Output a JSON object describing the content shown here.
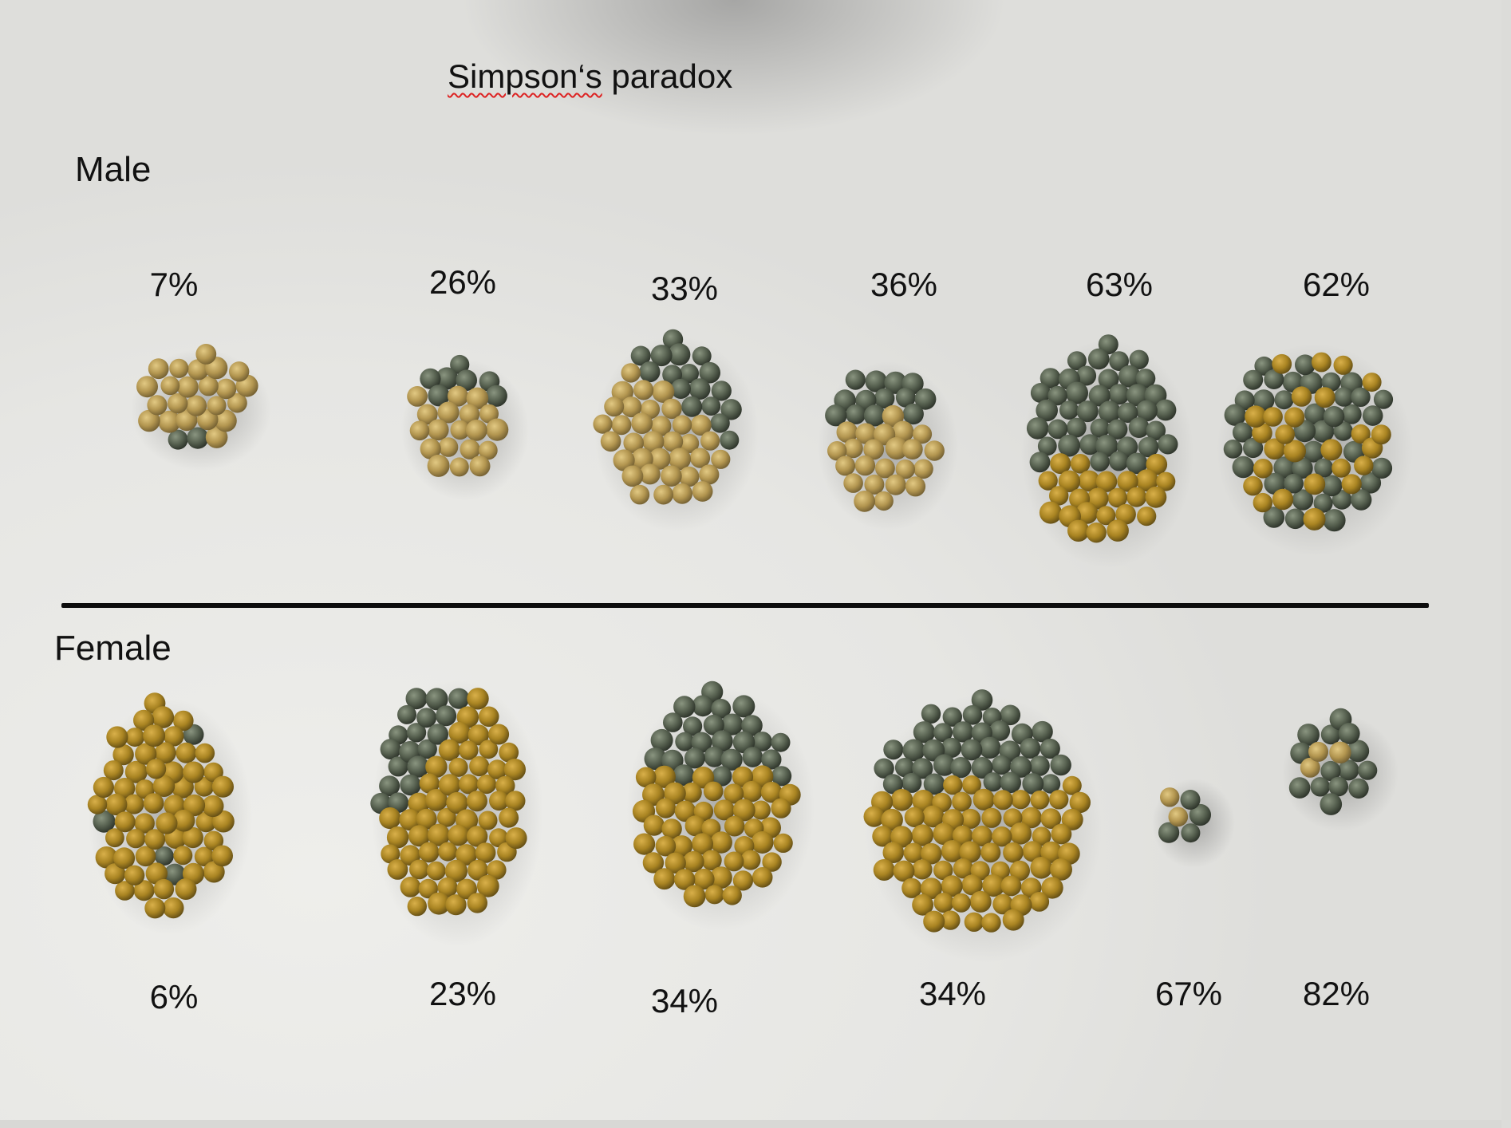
{
  "title_part1": "Simpson‘s",
  "title_part2": " paradox",
  "male": {
    "label": "Male",
    "percentages": [
      "7%",
      "26%",
      "33%",
      "36%",
      "63%",
      "62%"
    ]
  },
  "female": {
    "label": "Female",
    "percentages": [
      "6%",
      "23%",
      "34%",
      "34%",
      "67%",
      "82%"
    ]
  },
  "colors": {
    "yellow_pea": "#b59a52",
    "green_pea": "#56604f",
    "background": "#ebebe8",
    "divider": "#0d0d0d"
  }
}
